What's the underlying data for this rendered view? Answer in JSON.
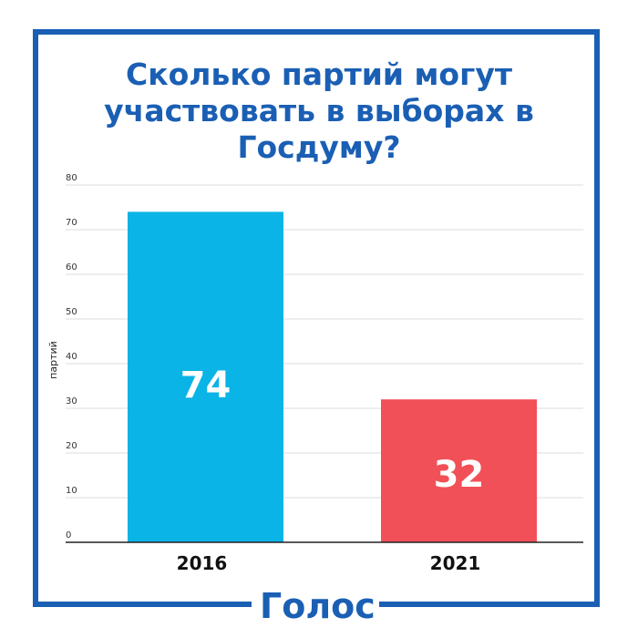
{
  "title": "Сколько партий могут участвовать в выборах в Госдуму?",
  "logo": "Голос",
  "colors": {
    "frame": "#1a5fb4",
    "bar_2016": "#0bb4e6",
    "bar_2021": "#f25058",
    "grid": "#dddddd"
  },
  "chart_data": {
    "type": "bar",
    "title": "Сколько партий могут участвовать в выборах в Госдуму?",
    "xlabel": "",
    "ylabel": "партий",
    "categories": [
      "2016",
      "2021"
    ],
    "values": [
      74,
      32
    ],
    "data_labels": [
      "74",
      "32"
    ],
    "yticks": [
      "0",
      "10",
      "20",
      "30",
      "40",
      "50",
      "60",
      "70",
      "80"
    ],
    "ylim": [
      0,
      80
    ],
    "grid": true,
    "legend": "none"
  }
}
